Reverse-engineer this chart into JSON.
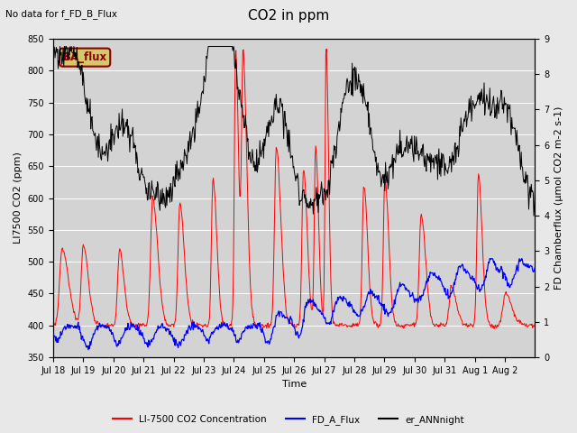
{
  "title": "CO2 in ppm",
  "top_left_text": "No data for f_FD_B_Flux",
  "box_label": "BA_flux",
  "xlabel": "Time",
  "ylabel_left": "LI7500 CO2 (ppm)",
  "ylabel_right": "FD Chamberflux (μmol CO2 m-2 s-1)",
  "ylim_left": [
    350,
    850
  ],
  "ylim_right": [
    0.0,
    9.0
  ],
  "yticks_left": [
    350,
    400,
    450,
    500,
    550,
    600,
    650,
    700,
    750,
    800,
    850
  ],
  "yticks_right": [
    0.0,
    1.0,
    2.0,
    3.0,
    4.0,
    5.0,
    6.0,
    7.0,
    8.0,
    9.0
  ],
  "xtick_labels": [
    "Jul 18",
    "Jul 19",
    "Jul 20",
    "Jul 21",
    "Jul 22",
    "Jul 23",
    "Jul 24",
    "Jul 25",
    "Jul 26",
    "Jul 27",
    "Jul 28",
    "Jul 29",
    "Jul 30",
    "Jul 31",
    "Aug 1",
    "Aug 2"
  ],
  "legend_labels": [
    "LI-7500 CO2 Concentration",
    "FD_A_Flux",
    "er_ANNnight"
  ],
  "legend_colors": [
    "red",
    "blue",
    "black"
  ],
  "bg_color": "#e8e8e8",
  "plot_bg_color": "#d8d8d8",
  "title_fontsize": 11,
  "label_fontsize": 8,
  "tick_fontsize": 7,
  "n_days": 16,
  "pts_per_day": 48
}
